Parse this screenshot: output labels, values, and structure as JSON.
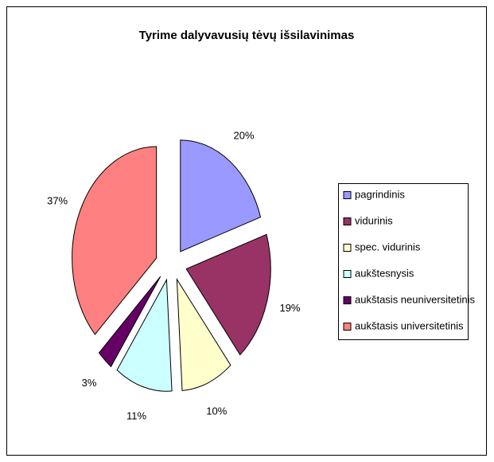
{
  "chart_data": {
    "type": "pie",
    "title": "Tyrime dalyvavusių tėvų išsilavinimas",
    "categories": [
      "pagrindinis",
      "vidurinis",
      "spec. vidurinis",
      "aukštesnysis",
      "aukštasis neuniversitetinis",
      "aukštasis universitetinis"
    ],
    "values": [
      20,
      19,
      10,
      11,
      3,
      37
    ],
    "value_labels": [
      "20%",
      "19%",
      "10%",
      "11%",
      "3%",
      "37%"
    ],
    "colors": [
      "#9999ff",
      "#993366",
      "#ffffcc",
      "#ccffff",
      "#660066",
      "#ff8080"
    ],
    "exploded": true,
    "legend": "right"
  }
}
